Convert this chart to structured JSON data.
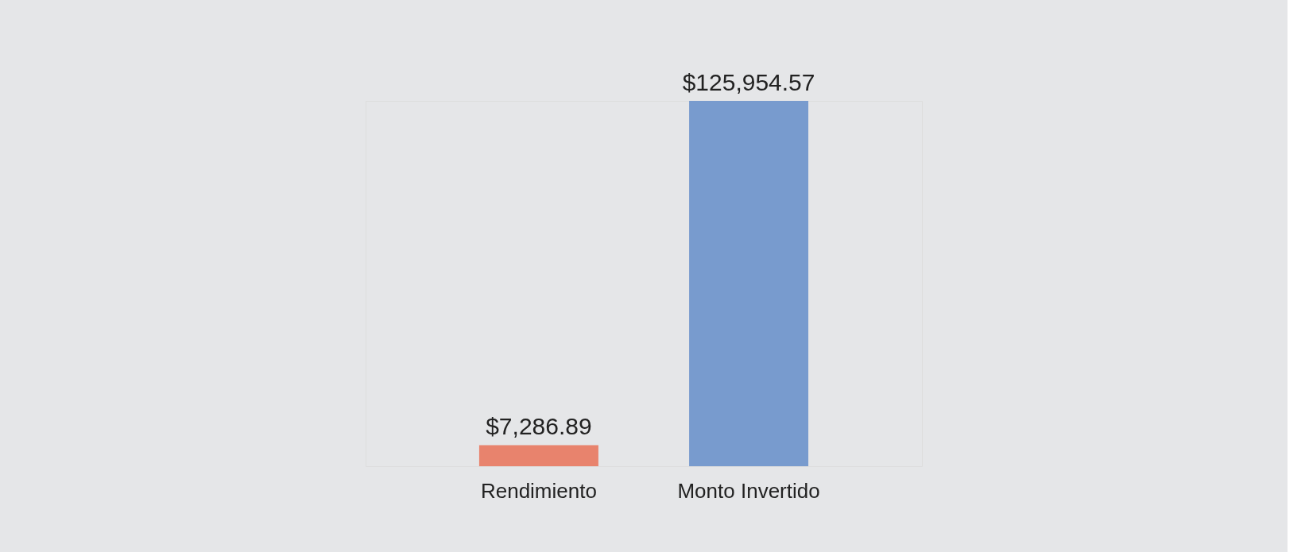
{
  "chart_data": {
    "type": "bar",
    "categories": [
      "Rendimiento",
      "Monto Invertido"
    ],
    "values": [
      7286.89,
      125954.57
    ],
    "colors": [
      "#e8836d",
      "#789bce"
    ],
    "value_labels": [
      "$7,286.89",
      "$125,954.57"
    ]
  }
}
